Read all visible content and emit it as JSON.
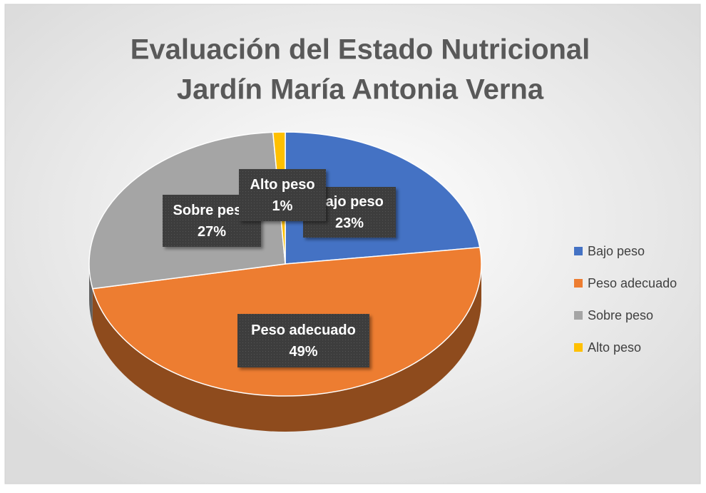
{
  "chart_data": {
    "type": "pie",
    "title": [
      "Evaluación del Estado Nutricional",
      "Jardín María Antonia Verna"
    ],
    "categories": [
      "Bajo peso",
      "Peso adecuado",
      "Sobre peso",
      "Alto peso"
    ],
    "values": [
      23,
      49,
      27,
      1
    ],
    "value_labels": [
      "23%",
      "49%",
      "27%",
      "1%"
    ],
    "colors": [
      "#4472c4",
      "#ed7d31",
      "#a5a5a5",
      "#ffc000"
    ],
    "legend": "right"
  }
}
